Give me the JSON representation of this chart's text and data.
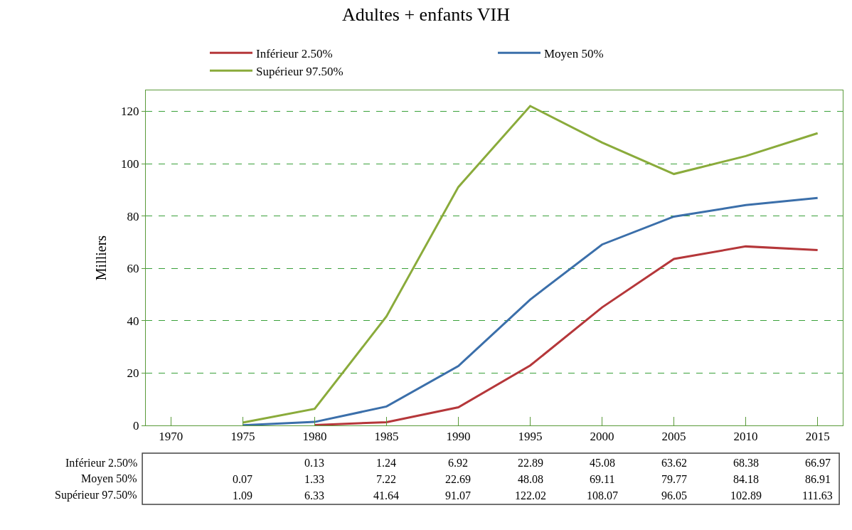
{
  "chart_data": {
    "type": "line",
    "title": "Adultes + enfants VIH",
    "ylabel": "Milliers",
    "categories": [
      "1970",
      "1975",
      "1980",
      "1985",
      "1990",
      "1995",
      "2000",
      "2005",
      "2010",
      "2015"
    ],
    "series": [
      {
        "name": "Inférieur 2.50%",
        "color": "#b5373a",
        "values": [
          null,
          null,
          0.13,
          1.24,
          6.92,
          22.89,
          45.08,
          63.62,
          68.38,
          66.97
        ]
      },
      {
        "name": "Moyen 50%",
        "color": "#3b6faa",
        "values": [
          null,
          0.07,
          1.33,
          7.22,
          22.69,
          48.08,
          69.11,
          79.77,
          84.18,
          86.91
        ]
      },
      {
        "name": "Supérieur 97.50%",
        "color": "#8aab3b",
        "values": [
          null,
          1.09,
          6.33,
          41.64,
          91.07,
          122.02,
          108.07,
          96.05,
          102.89,
          111.63
        ]
      }
    ],
    "ylim": [
      0,
      128
    ],
    "yticks": [
      0,
      20,
      40,
      60,
      80,
      100,
      120
    ],
    "grid": "y",
    "legend": "top",
    "data_labels": true,
    "line_style": "solid",
    "marker": "none"
  }
}
